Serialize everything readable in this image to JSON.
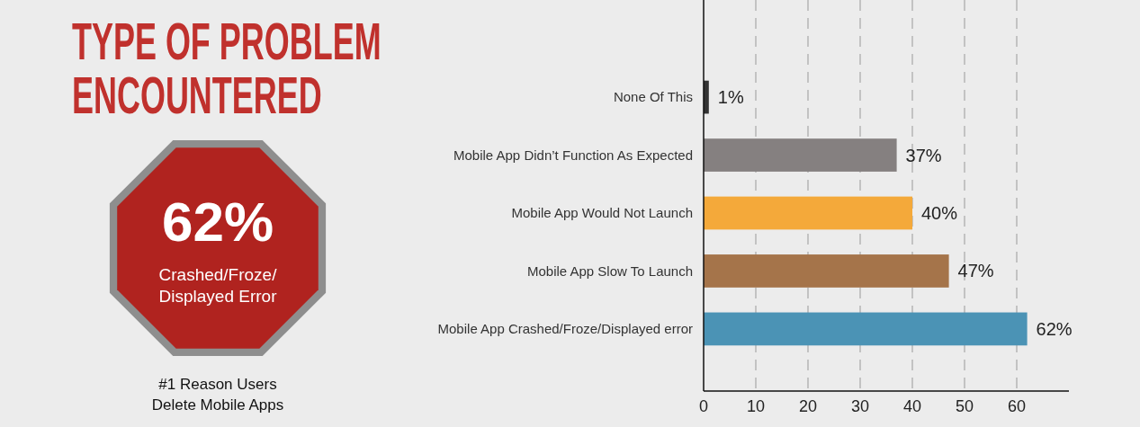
{
  "chart_data": {
    "type": "bar",
    "orientation": "horizontal",
    "title": "TYPE OF PROBLEM ENCOUNTERED",
    "categories": [
      "None Of This",
      "Mobile App Didn’t Function As Expected",
      "Mobile App Would Not Launch",
      "Mobile App Slow To Launch",
      "Mobile App Crashed/Froze/Displayed error"
    ],
    "values": [
      1,
      37,
      40,
      47,
      62
    ],
    "colors": [
      "#333333",
      "#858080",
      "#f4a93a",
      "#a5744a",
      "#4b93b5"
    ],
    "value_labels": [
      "1%",
      "37%",
      "40%",
      "47%",
      "62%"
    ],
    "xlim": [
      0,
      70
    ],
    "xticks": [
      0,
      10,
      20,
      30,
      40,
      50,
      60
    ],
    "grid": "x",
    "annotations": [
      "62%",
      "Crashed/Froze/ Displayed Error",
      "#1 Reason Users Delete Mobile Apps"
    ]
  }
}
